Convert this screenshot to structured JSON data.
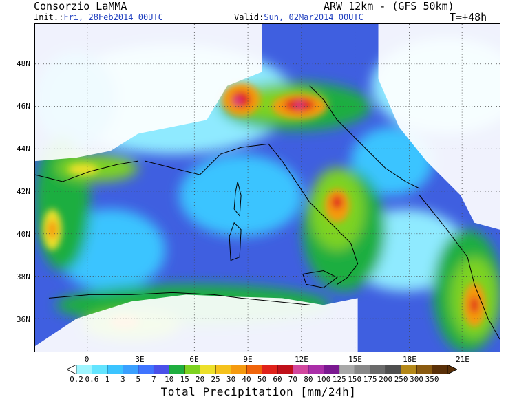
{
  "header": {
    "org": "Consorzio LaMMA",
    "model": "ARW 12km - (GFS 50km)",
    "init_label": "Init.:",
    "init_value": "Fri, 28Feb2014 00UTC",
    "valid_label": "Valid:",
    "valid_value": "Sun, 02Mar2014 00UTC",
    "lead": "T=+48h"
  },
  "axes": {
    "lat_labels": [
      "48N",
      "46N",
      "44N",
      "42N",
      "40N",
      "38N",
      "36N"
    ],
    "lon_labels": [
      "0",
      "3E",
      "6E",
      "9E",
      "12E",
      "15E",
      "18E",
      "21E"
    ]
  },
  "legend": {
    "title": "Total Precipitation [mm/24h]",
    "bins": [
      "0.2",
      "0.6",
      "1",
      "3",
      "5",
      "7",
      "10",
      "15",
      "20",
      "25",
      "30",
      "40",
      "50",
      "60",
      "70",
      "80",
      "100",
      "125",
      "150",
      "175",
      "200",
      "250",
      "300",
      "350"
    ],
    "colors": [
      "#9ff5ff",
      "#63e4ff",
      "#3bc4ff",
      "#3aa0ff",
      "#3f74ff",
      "#4a50ea",
      "#1fae3f",
      "#7ed321",
      "#ede02a",
      "#f5c21c",
      "#f59a0e",
      "#f0640a",
      "#e0221a",
      "#c0101a",
      "#d2479e",
      "#aa2ea8",
      "#7a1890",
      "#a8a8a8",
      "#888888",
      "#6a6a6a",
      "#4e4e4e",
      "#b48818",
      "#8a5a10",
      "#5a3008"
    ]
  },
  "map_colors": {
    "sea": "#3f5fe0",
    "land": "#ffffff",
    "light": "#8feaff",
    "cyan": "#3bc4ff",
    "green": "#1fae3f",
    "lime": "#7ed321",
    "yellow": "#ede02a",
    "orange": "#f59a0e",
    "red": "#e0221a",
    "magenta": "#d2479e"
  }
}
